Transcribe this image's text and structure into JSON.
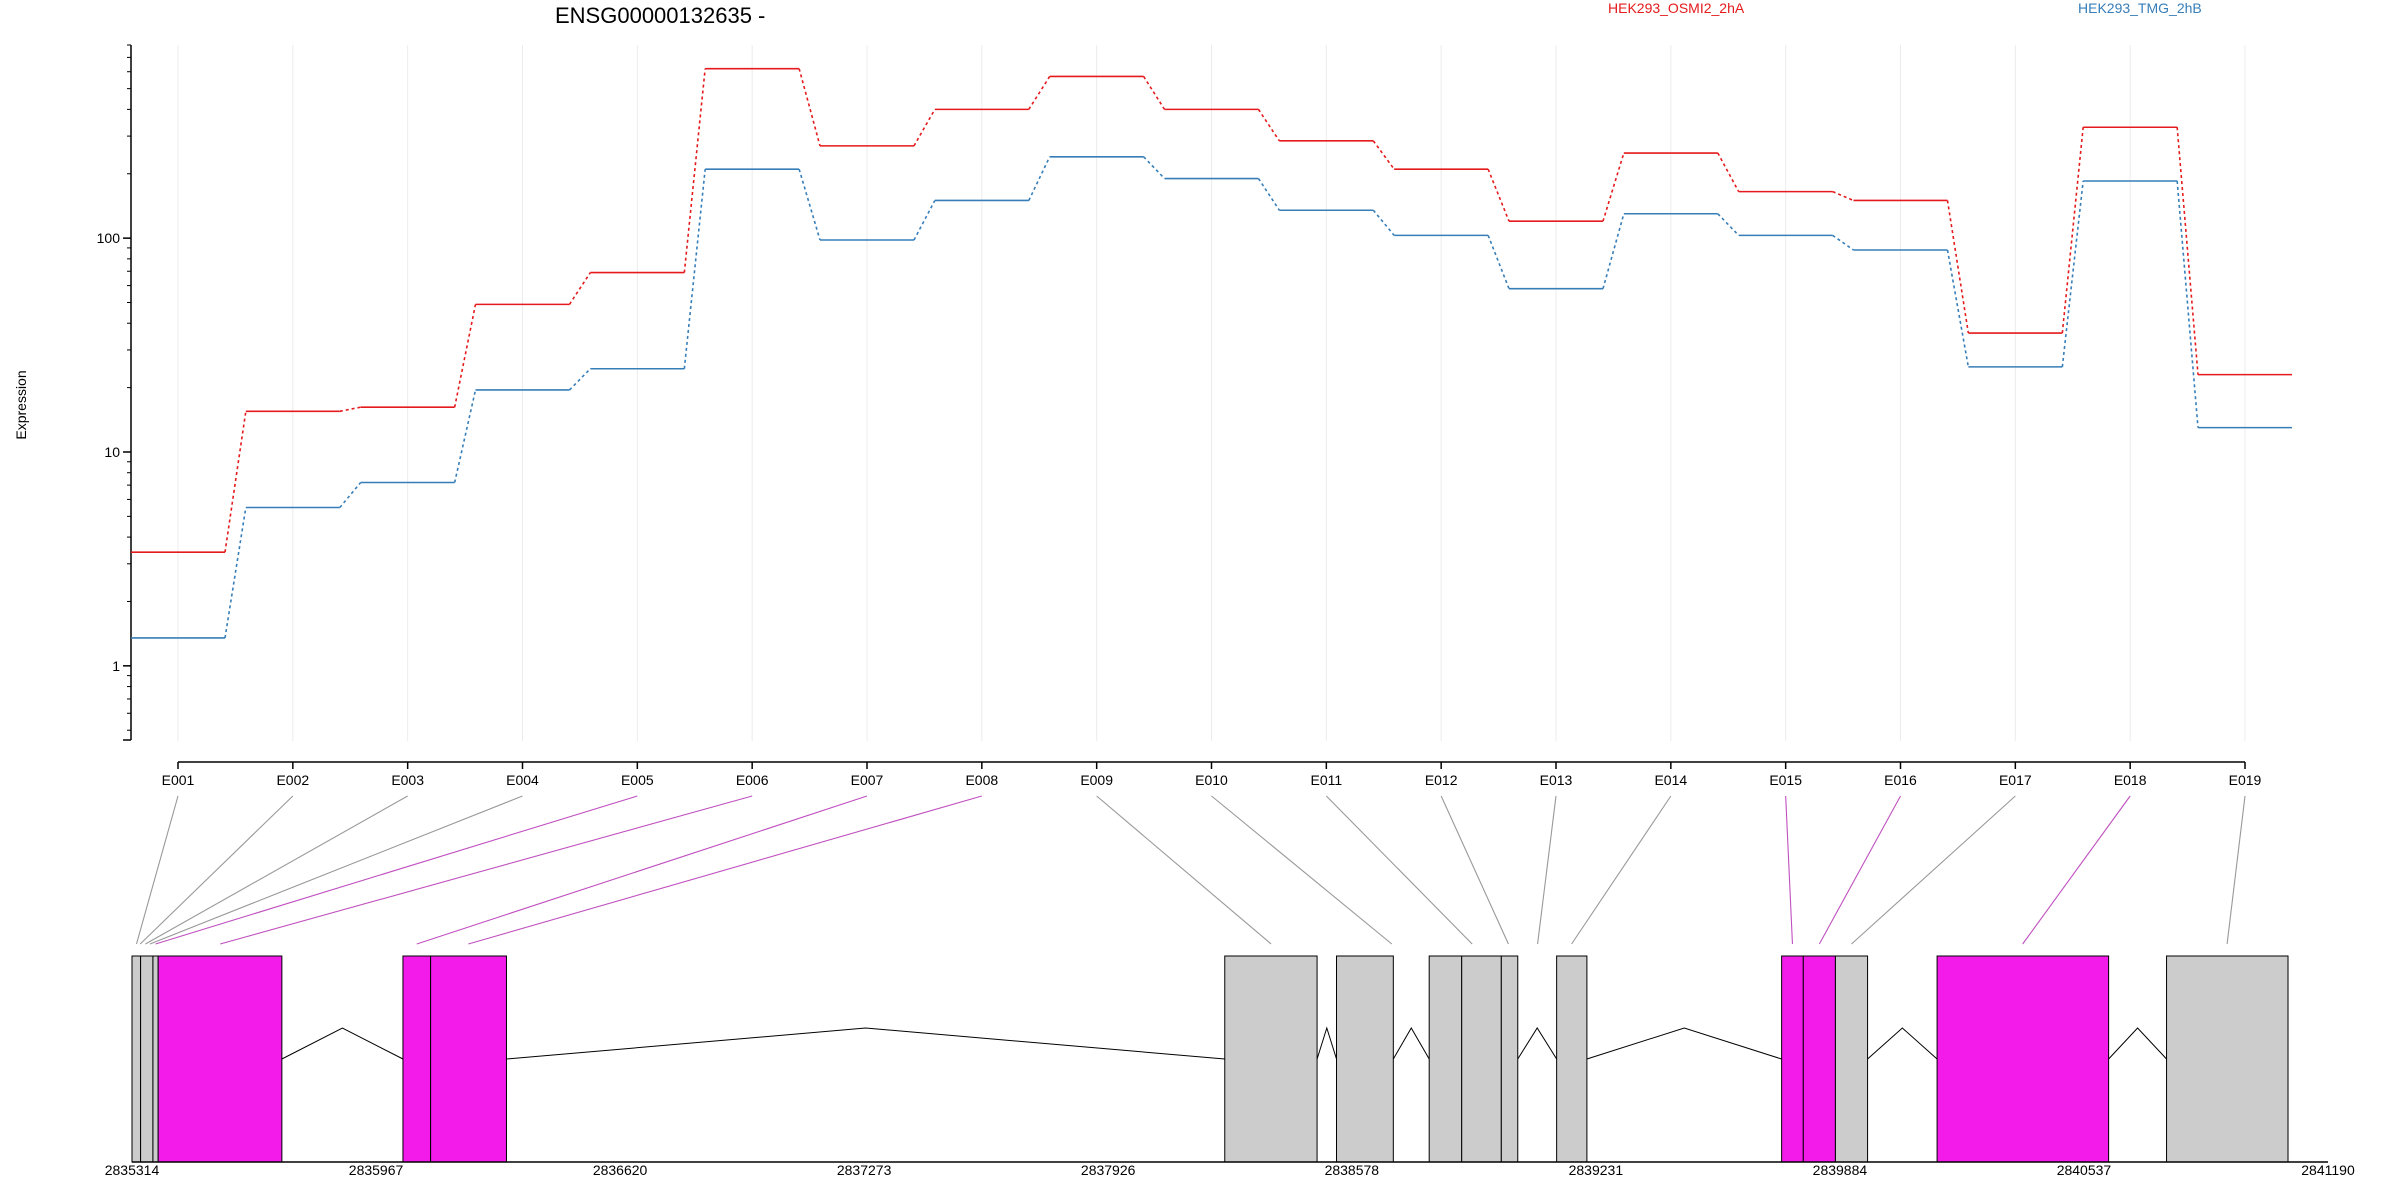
{
  "chart_data": {
    "type": "line",
    "title": "ENSG00000132635 -",
    "ylabel": "Expression",
    "xlabel": "",
    "y_scale": "log",
    "ylim": [
      0.45,
      800
    ],
    "y_ticks": [
      1,
      10,
      100
    ],
    "y_tick_labels": [
      "1",
      "10",
      "100"
    ],
    "grid": "vertical lines at exon positions",
    "legend_position": "top",
    "categories": [
      "E001",
      "E002",
      "E003",
      "E004",
      "E005",
      "E006",
      "E007",
      "E008",
      "E009",
      "E010",
      "E011",
      "E012",
      "E013",
      "E014",
      "E015",
      "E016",
      "E017",
      "E018",
      "E019"
    ],
    "series": [
      {
        "name": "HEK293_OSMI2_2hA",
        "color": "#e41a1c",
        "values": [
          3.4,
          15.5,
          16.2,
          49,
          69,
          620,
          270,
          400,
          570,
          400,
          285,
          210,
          120,
          250,
          165,
          150,
          36,
          330,
          23
        ]
      },
      {
        "name": "HEK293_TMG_2hB",
        "color": "#377eb8",
        "values": [
          1.35,
          5.5,
          7.2,
          19.5,
          24.5,
          210,
          98,
          150,
          240,
          190,
          135,
          103,
          58,
          130,
          103,
          88,
          25,
          185,
          13
        ]
      }
    ],
    "gene_model": {
      "genomic_axis_ticks": [
        "2835314",
        "2835967",
        "2836620",
        "2837273",
        "2837926",
        "2838578",
        "2839231",
        "2839884",
        "2840537",
        "2841190"
      ],
      "genomic_range": [
        2835314,
        2841190
      ],
      "exon_blocks": [
        {
          "start": 2835314,
          "end": 2835337,
          "fill": "#cccccc"
        },
        {
          "start": 2835337,
          "end": 2835370,
          "fill": "#cccccc"
        },
        {
          "start": 2835370,
          "end": 2835384,
          "fill": "#cccccc"
        },
        {
          "start": 2835384,
          "end": 2835715,
          "fill": "#f21bea"
        },
        {
          "start": 2836039,
          "end": 2836113,
          "fill": "#f21bea"
        },
        {
          "start": 2836113,
          "end": 2836316,
          "fill": "#f21bea"
        },
        {
          "start": 2838238,
          "end": 2838485,
          "fill": "#cccccc"
        },
        {
          "start": 2838537,
          "end": 2838689,
          "fill": "#cccccc"
        },
        {
          "start": 2838785,
          "end": 2838872,
          "fill": "#cccccc"
        },
        {
          "start": 2838872,
          "end": 2838978,
          "fill": "#cccccc"
        },
        {
          "start": 2838978,
          "end": 2839022,
          "fill": "#cccccc"
        },
        {
          "start": 2839126,
          "end": 2839207,
          "fill": "#cccccc"
        },
        {
          "start": 2839728,
          "end": 2839786,
          "fill": "#f21bea"
        },
        {
          "start": 2839786,
          "end": 2839872,
          "fill": "#f21bea"
        },
        {
          "start": 2839872,
          "end": 2839958,
          "fill": "#cccccc"
        },
        {
          "start": 2840144,
          "end": 2840603,
          "fill": "#f21bea"
        },
        {
          "start": 2840758,
          "end": 2841083,
          "fill": "#cccccc"
        }
      ],
      "introns": [
        [
          2835715,
          2836039
        ],
        [
          2836316,
          2838238
        ],
        [
          2838485,
          2838537
        ],
        [
          2838689,
          2838785
        ],
        [
          2839022,
          2839126
        ],
        [
          2839207,
          2839728
        ],
        [
          2839958,
          2840144
        ],
        [
          2840603,
          2840758
        ]
      ],
      "exon_links": [
        {
          "exon": "E001",
          "target": 2835326,
          "color": "#999999"
        },
        {
          "exon": "E002",
          "target": 2835336,
          "color": "#999999"
        },
        {
          "exon": "E003",
          "target": 2835350,
          "color": "#999999"
        },
        {
          "exon": "E004",
          "target": 2835362,
          "color": "#999999"
        },
        {
          "exon": "E005",
          "target": 2835377,
          "color": "#c050c0"
        },
        {
          "exon": "E006",
          "target": 2835550,
          "color": "#c050c0"
        },
        {
          "exon": "E007",
          "target": 2836076,
          "color": "#c050c0"
        },
        {
          "exon": "E008",
          "target": 2836214,
          "color": "#c050c0"
        },
        {
          "exon": "E009",
          "target": 2838362,
          "color": "#999999"
        },
        {
          "exon": "E010",
          "target": 2838685,
          "color": "#999999"
        },
        {
          "exon": "E011",
          "target": 2838900,
          "color": "#999999"
        },
        {
          "exon": "E012",
          "target": 2838997,
          "color": "#999999"
        },
        {
          "exon": "E013",
          "target": 2839075,
          "color": "#999999"
        },
        {
          "exon": "E014",
          "target": 2839166,
          "color": "#999999"
        },
        {
          "exon": "E015",
          "target": 2839757,
          "color": "#c050c0"
        },
        {
          "exon": "E016",
          "target": 2839829,
          "color": "#c050c0"
        },
        {
          "exon": "E017",
          "target": 2839915,
          "color": "#999999"
        },
        {
          "exon": "E018",
          "target": 2840373,
          "color": "#c050c0"
        },
        {
          "exon": "E019",
          "target": 2840920,
          "color": "#999999"
        }
      ]
    }
  }
}
